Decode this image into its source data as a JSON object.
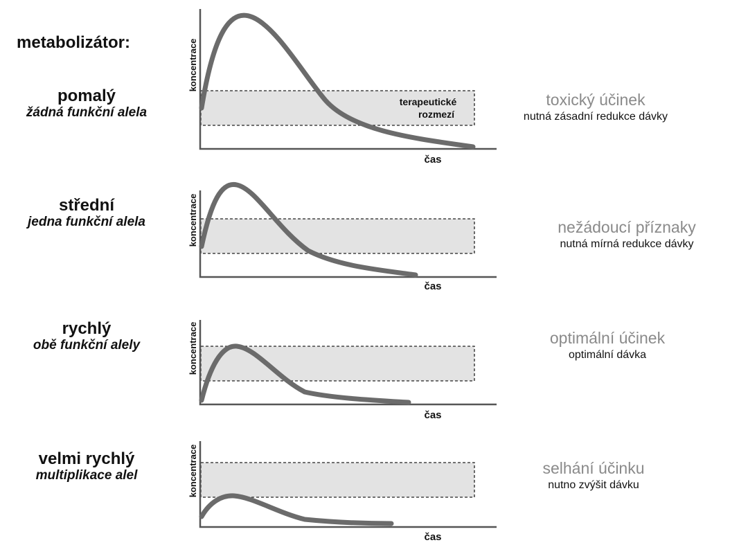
{
  "heading": "metabolizátor:",
  "y_axis_label": "koncentrace",
  "x_axis_label": "čas",
  "range_label_line1": "terapeutické",
  "range_label_line2": "rozmezí",
  "colors": {
    "curve": "#6b6b6b",
    "range_fill": "#e3e3e3",
    "axis": "#555555",
    "effect_text": "#8a8a8a"
  },
  "rows": [
    {
      "speed": "pomalý",
      "allele": "žádná funkční alela",
      "effect": "toxický účinek",
      "dose": "nutná zásadní redukce dávky"
    },
    {
      "speed": "střední",
      "allele": "jedna funkční alela",
      "effect": "nežádoucí příznaky",
      "dose": "nutná mírná redukce dávky"
    },
    {
      "speed": "rychlý",
      "allele": "obě funkční alely",
      "effect": "optimální účinek",
      "dose": "optimální dávka"
    },
    {
      "speed": "velmi rychlý",
      "allele": "multiplikace alel",
      "effect": "selhání účinku",
      "dose": "nutno zvýšit dávku"
    }
  ]
}
